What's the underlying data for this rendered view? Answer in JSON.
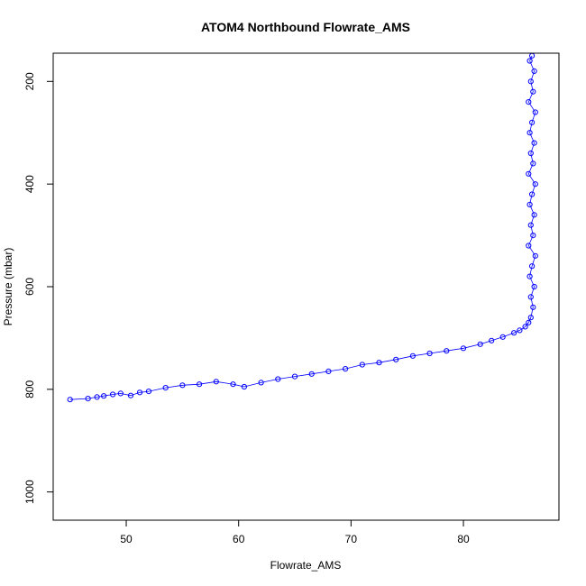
{
  "chart_data": {
    "type": "scatter",
    "title": "ATOM4 Northbound Flowrate_AMS",
    "xlabel": "Flowrate_AMS",
    "ylabel": "Pressure (mbar)",
    "xlim": [
      43.5,
      88.5
    ],
    "ylim": [
      1055,
      145
    ],
    "y_reversed": true,
    "x_ticks": [
      50,
      60,
      70,
      80
    ],
    "y_ticks": [
      200,
      400,
      600,
      800,
      1000
    ],
    "grid": false,
    "legend": "none",
    "marker": "open-circle",
    "connected_by_lines": true,
    "color": "#0000ff",
    "series": [
      {
        "points": [
          [
            45.0,
            820
          ],
          [
            46.6,
            818
          ],
          [
            47.4,
            815
          ],
          [
            48.0,
            813
          ],
          [
            48.8,
            810
          ],
          [
            49.5,
            808
          ],
          [
            50.4,
            812
          ],
          [
            51.2,
            806
          ],
          [
            52.0,
            804
          ],
          [
            53.5,
            797
          ],
          [
            55.0,
            792
          ],
          [
            56.5,
            790
          ],
          [
            58.0,
            785
          ],
          [
            59.5,
            790
          ],
          [
            60.5,
            795
          ],
          [
            62.0,
            787
          ],
          [
            63.5,
            780
          ],
          [
            65.0,
            775
          ],
          [
            66.5,
            770
          ],
          [
            68.0,
            765
          ],
          [
            69.5,
            760
          ],
          [
            71.0,
            752
          ],
          [
            72.5,
            748
          ],
          [
            74.0,
            742
          ],
          [
            75.5,
            735
          ],
          [
            77.0,
            730
          ],
          [
            78.5,
            725
          ],
          [
            80.0,
            720
          ],
          [
            81.5,
            712
          ],
          [
            82.5,
            705
          ],
          [
            83.5,
            698
          ],
          [
            84.5,
            690
          ],
          [
            85.0,
            685
          ],
          [
            85.5,
            678
          ],
          [
            85.8,
            670
          ],
          [
            86.0,
            660
          ],
          [
            86.2,
            640
          ],
          [
            86.0,
            620
          ],
          [
            86.3,
            600
          ],
          [
            85.9,
            580
          ],
          [
            86.1,
            560
          ],
          [
            86.4,
            540
          ],
          [
            85.8,
            520
          ],
          [
            86.2,
            500
          ],
          [
            86.0,
            480
          ],
          [
            86.3,
            460
          ],
          [
            85.9,
            440
          ],
          [
            86.1,
            420
          ],
          [
            86.4,
            400
          ],
          [
            85.8,
            380
          ],
          [
            86.2,
            360
          ],
          [
            86.0,
            340
          ],
          [
            86.3,
            320
          ],
          [
            85.9,
            300
          ],
          [
            86.1,
            280
          ],
          [
            86.4,
            260
          ],
          [
            85.8,
            240
          ],
          [
            86.2,
            220
          ],
          [
            86.0,
            200
          ],
          [
            86.3,
            180
          ],
          [
            85.9,
            160
          ],
          [
            86.1,
            150
          ]
        ]
      }
    ]
  }
}
